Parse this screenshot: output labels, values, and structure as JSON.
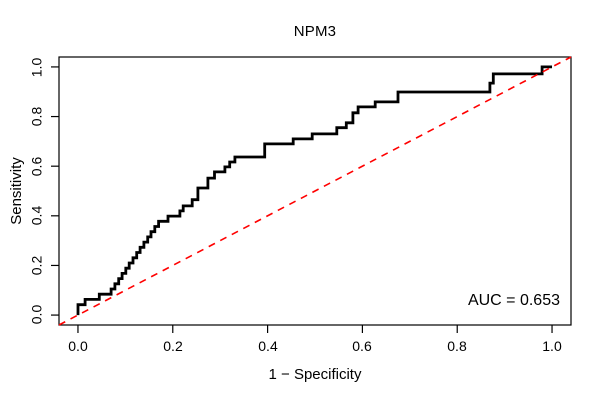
{
  "figure": {
    "background": "#ffffff",
    "text_color": "#000000",
    "axis_color": "#000000"
  },
  "chart_data": {
    "type": "line",
    "subtype": "roc-curve",
    "title": "NPM3",
    "xlabel": "1 − Specificity",
    "ylabel": "Sensitivity",
    "grid": false,
    "legend": "none",
    "xlim": [
      -0.04,
      1.04
    ],
    "ylim": [
      -0.04,
      1.04
    ],
    "x_ticks": [
      0.0,
      0.2,
      0.4,
      0.6,
      0.8,
      1.0
    ],
    "x_tick_labels": [
      "0.0",
      "0.2",
      "0.4",
      "0.6",
      "0.8",
      "1.0"
    ],
    "y_ticks": [
      0.0,
      0.2,
      0.4,
      0.6,
      0.8,
      1.0
    ],
    "y_tick_labels": [
      "0.0",
      "0.2",
      "0.4",
      "0.6",
      "0.8",
      "1.0"
    ],
    "annotation": "AUC = 0.653",
    "auc": 0.653,
    "series": [
      {
        "name": "ROC step curve",
        "style": "step",
        "color": "#000000",
        "width": 2.8,
        "dash": null,
        "points": [
          [
            0.0,
            0.0
          ],
          [
            0.0,
            0.042
          ],
          [
            0.015,
            0.042
          ],
          [
            0.015,
            0.063
          ],
          [
            0.045,
            0.063
          ],
          [
            0.045,
            0.084
          ],
          [
            0.07,
            0.084
          ],
          [
            0.07,
            0.105
          ],
          [
            0.078,
            0.105
          ],
          [
            0.078,
            0.126
          ],
          [
            0.086,
            0.126
          ],
          [
            0.086,
            0.147
          ],
          [
            0.093,
            0.147
          ],
          [
            0.093,
            0.168
          ],
          [
            0.101,
            0.168
          ],
          [
            0.101,
            0.189
          ],
          [
            0.108,
            0.189
          ],
          [
            0.108,
            0.21
          ],
          [
            0.116,
            0.21
          ],
          [
            0.116,
            0.231
          ],
          [
            0.124,
            0.231
          ],
          [
            0.124,
            0.252
          ],
          [
            0.131,
            0.252
          ],
          [
            0.131,
            0.273
          ],
          [
            0.139,
            0.273
          ],
          [
            0.139,
            0.294
          ],
          [
            0.147,
            0.294
          ],
          [
            0.147,
            0.315
          ],
          [
            0.154,
            0.315
          ],
          [
            0.154,
            0.336
          ],
          [
            0.162,
            0.336
          ],
          [
            0.162,
            0.357
          ],
          [
            0.17,
            0.357
          ],
          [
            0.17,
            0.378
          ],
          [
            0.19,
            0.378
          ],
          [
            0.19,
            0.399
          ],
          [
            0.215,
            0.399
          ],
          [
            0.215,
            0.42
          ],
          [
            0.222,
            0.42
          ],
          [
            0.222,
            0.44
          ],
          [
            0.241,
            0.44
          ],
          [
            0.241,
            0.465
          ],
          [
            0.253,
            0.465
          ],
          [
            0.253,
            0.512
          ],
          [
            0.274,
            0.512
          ],
          [
            0.274,
            0.552
          ],
          [
            0.288,
            0.552
          ],
          [
            0.288,
            0.577
          ],
          [
            0.31,
            0.577
          ],
          [
            0.31,
            0.597
          ],
          [
            0.32,
            0.597
          ],
          [
            0.32,
            0.617
          ],
          [
            0.331,
            0.617
          ],
          [
            0.331,
            0.637
          ],
          [
            0.394,
            0.637
          ],
          [
            0.394,
            0.69
          ],
          [
            0.454,
            0.69
          ],
          [
            0.454,
            0.71
          ],
          [
            0.494,
            0.71
          ],
          [
            0.494,
            0.73
          ],
          [
            0.546,
            0.73
          ],
          [
            0.546,
            0.755
          ],
          [
            0.566,
            0.755
          ],
          [
            0.566,
            0.775
          ],
          [
            0.58,
            0.775
          ],
          [
            0.58,
            0.815
          ],
          [
            0.591,
            0.815
          ],
          [
            0.591,
            0.839
          ],
          [
            0.627,
            0.839
          ],
          [
            0.627,
            0.859
          ],
          [
            0.675,
            0.859
          ],
          [
            0.675,
            0.899
          ],
          [
            0.869,
            0.899
          ],
          [
            0.869,
            0.935
          ],
          [
            0.876,
            0.935
          ],
          [
            0.876,
            0.972
          ],
          [
            0.979,
            0.972
          ],
          [
            0.979,
            1.0
          ],
          [
            1.0,
            1.0
          ]
        ]
      },
      {
        "name": "Chance reference diagonal",
        "style": "dashed",
        "color": "#ff0000",
        "width": 1.6,
        "dash": [
          7,
          6
        ],
        "points": [
          [
            -0.04,
            -0.04
          ],
          [
            1.04,
            1.04
          ]
        ]
      }
    ]
  }
}
